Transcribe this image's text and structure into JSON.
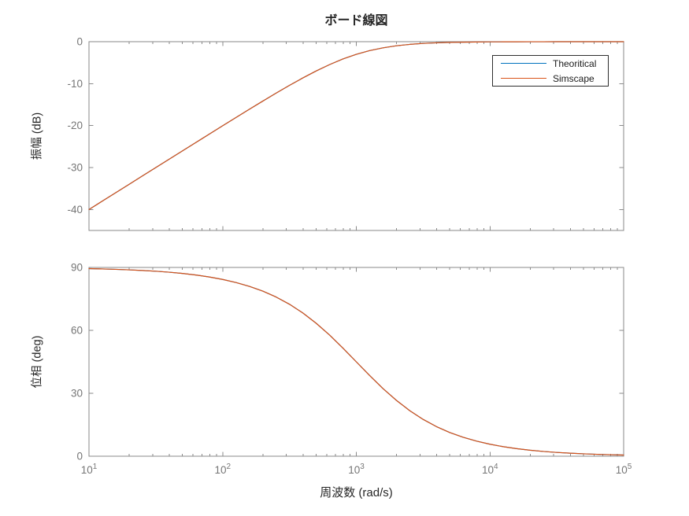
{
  "figure": {
    "title": "ボード線図",
    "background": "#ffffff"
  },
  "style": {
    "axis_color": "#8a8a8a",
    "tick_label_color": "#757575",
    "label_color": "#262626",
    "legend_border_color": "#2e2e2e",
    "theoretical_color": "#0072BD",
    "simscape_color": "#D95319"
  },
  "legend": {
    "position": "northeast",
    "entries": [
      {
        "label": "Theoritical",
        "color": "#0072BD"
      },
      {
        "label": "Simscape",
        "color": "#D95319"
      }
    ]
  },
  "chart_data": [
    {
      "type": "line",
      "name": "magnitude-subplot",
      "xscale": "log",
      "xlim": [
        10,
        100000
      ],
      "ylim": [
        -45,
        0
      ],
      "yticks": [
        0,
        -10,
        -20,
        -30,
        -40
      ],
      "ylabel": "振幅 (dB)",
      "xlabel": "",
      "grid": false,
      "x_tick_labels_visible": false,
      "x_ticks": [
        {
          "base": "10",
          "exp": "1",
          "value": 10
        },
        {
          "base": "10",
          "exp": "2",
          "value": 100
        },
        {
          "base": "10",
          "exp": "3",
          "value": 1000
        },
        {
          "base": "10",
          "exp": "4",
          "value": 10000
        },
        {
          "base": "10",
          "exp": "5",
          "value": 100000
        }
      ],
      "x_log10": [
        1,
        1.1,
        1.2,
        1.3,
        1.4,
        1.5,
        1.6,
        1.7,
        1.8,
        1.9,
        2,
        2.1,
        2.2,
        2.3,
        2.4,
        2.5,
        2.6,
        2.7,
        2.8,
        2.9,
        3,
        3.1,
        3.2,
        3.3,
        3.4,
        3.5,
        3.6,
        3.7,
        3.8,
        3.9,
        4,
        4.1,
        4.2,
        4.3,
        4.4,
        4.5,
        4.6,
        4.7,
        4.8,
        4.9,
        5
      ],
      "series": [
        {
          "name": "Theoritical",
          "color": "#0072BD",
          "values": [
            -40,
            -37.99,
            -36,
            -34,
            -32,
            -30,
            -28.01,
            -26.01,
            -24.02,
            -22.03,
            -20.04,
            -18.07,
            -16.11,
            -14.17,
            -12.26,
            -10.41,
            -8.64,
            -6.97,
            -5.46,
            -4.12,
            -3.01,
            -2.12,
            -1.46,
            -0.97,
            -0.64,
            -0.41,
            -0.27,
            -0.17,
            -0.11,
            -0.07,
            -0.04,
            -0.03,
            -0.02,
            -0.011,
            -0.007,
            -0.004,
            -0.003,
            -0.002,
            -0.001,
            -0.001,
            0
          ]
        },
        {
          "name": "Simscape",
          "color": "#D95319",
          "values": [
            -40,
            -37.99,
            -36,
            -34,
            -32,
            -30,
            -28.01,
            -26.01,
            -24.02,
            -22.03,
            -20.04,
            -18.07,
            -16.11,
            -14.17,
            -12.26,
            -10.41,
            -8.64,
            -6.97,
            -5.46,
            -4.12,
            -3.01,
            -2.12,
            -1.46,
            -0.97,
            -0.64,
            -0.41,
            -0.27,
            -0.17,
            -0.11,
            -0.07,
            -0.04,
            -0.03,
            -0.02,
            -0.011,
            -0.007,
            -0.004,
            -0.003,
            -0.002,
            -0.001,
            -0.001,
            0
          ]
        }
      ]
    },
    {
      "type": "line",
      "name": "phase-subplot",
      "xscale": "log",
      "xlim": [
        10,
        100000
      ],
      "ylim": [
        0,
        90
      ],
      "yticks": [
        90,
        60,
        30,
        0
      ],
      "ylabel": "位相 (deg)",
      "xlabel": "周波数 (rad/s)",
      "grid": false,
      "x_tick_labels_visible": true,
      "x_ticks": [
        {
          "base": "10",
          "exp": "1",
          "value": 10
        },
        {
          "base": "10",
          "exp": "2",
          "value": 100
        },
        {
          "base": "10",
          "exp": "3",
          "value": 1000
        },
        {
          "base": "10",
          "exp": "4",
          "value": 10000
        },
        {
          "base": "10",
          "exp": "5",
          "value": 100000
        }
      ],
      "x_log10": [
        1,
        1.1,
        1.2,
        1.3,
        1.4,
        1.5,
        1.6,
        1.7,
        1.8,
        1.9,
        2,
        2.1,
        2.2,
        2.3,
        2.4,
        2.5,
        2.6,
        2.7,
        2.8,
        2.9,
        3,
        3.1,
        3.2,
        3.3,
        3.4,
        3.5,
        3.6,
        3.7,
        3.8,
        3.9,
        4,
        4.1,
        4.2,
        4.3,
        4.4,
        4.5,
        4.6,
        4.7,
        4.8,
        4.9,
        5
      ],
      "series": [
        {
          "name": "Theoritical",
          "color": "#0072BD",
          "values": [
            89.43,
            89.28,
            89.09,
            88.86,
            88.56,
            88.19,
            87.72,
            87.13,
            86.39,
            85.46,
            84.29,
            82.82,
            80.99,
            78.71,
            75.9,
            72.45,
            68.3,
            63.37,
            57.76,
            51.54,
            45,
            38.46,
            32.24,
            26.63,
            21.7,
            17.55,
            14.1,
            11.29,
            9.01,
            7.18,
            5.71,
            4.54,
            3.61,
            2.87,
            2.28,
            1.81,
            1.44,
            1.14,
            0.91,
            0.72,
            0.57
          ]
        },
        {
          "name": "Simscape",
          "color": "#D95319",
          "values": [
            89.43,
            89.28,
            89.09,
            88.86,
            88.56,
            88.19,
            87.72,
            87.13,
            86.39,
            85.46,
            84.29,
            82.82,
            80.99,
            78.71,
            75.9,
            72.45,
            68.3,
            63.37,
            57.76,
            51.54,
            45,
            38.46,
            32.24,
            26.63,
            21.7,
            17.55,
            14.1,
            11.29,
            9.01,
            7.18,
            5.71,
            4.54,
            3.61,
            2.87,
            2.28,
            1.81,
            1.44,
            1.14,
            0.91,
            0.72,
            0.57
          ]
        }
      ]
    }
  ]
}
